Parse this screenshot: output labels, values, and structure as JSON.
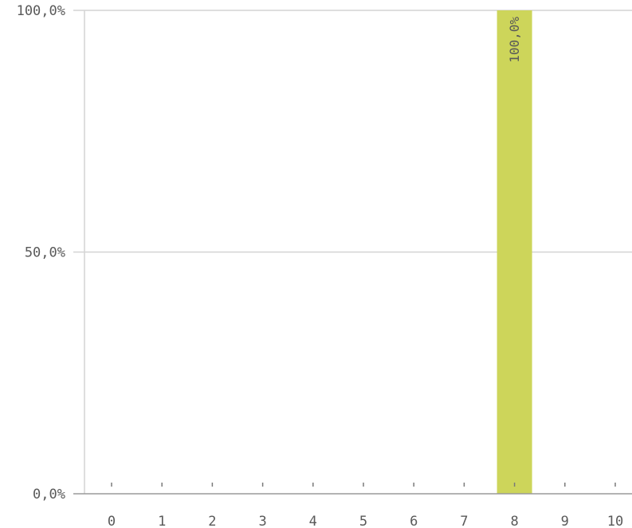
{
  "chart_data": {
    "type": "bar",
    "categories": [
      "0",
      "1",
      "2",
      "3",
      "4",
      "5",
      "6",
      "7",
      "8",
      "9",
      "10"
    ],
    "values": [
      0,
      0,
      0,
      0,
      0,
      0,
      0,
      0,
      100,
      0,
      0
    ],
    "data_labels": [
      "",
      "",
      "",
      "",
      "",
      "",
      "",
      "",
      "100,0%",
      "",
      ""
    ],
    "y_ticks": [
      0,
      50,
      100
    ],
    "y_tick_labels": [
      "0,0%",
      "50,0%",
      "100,0%"
    ],
    "ylim": [
      0,
      100
    ],
    "title": "",
    "xlabel": "",
    "ylabel": "",
    "grid": true,
    "legend": "none",
    "colors": {
      "bar": "#cdd55a",
      "grid": "#d4d4d4",
      "axis": "#9a9a9a",
      "text": "#595959"
    }
  }
}
